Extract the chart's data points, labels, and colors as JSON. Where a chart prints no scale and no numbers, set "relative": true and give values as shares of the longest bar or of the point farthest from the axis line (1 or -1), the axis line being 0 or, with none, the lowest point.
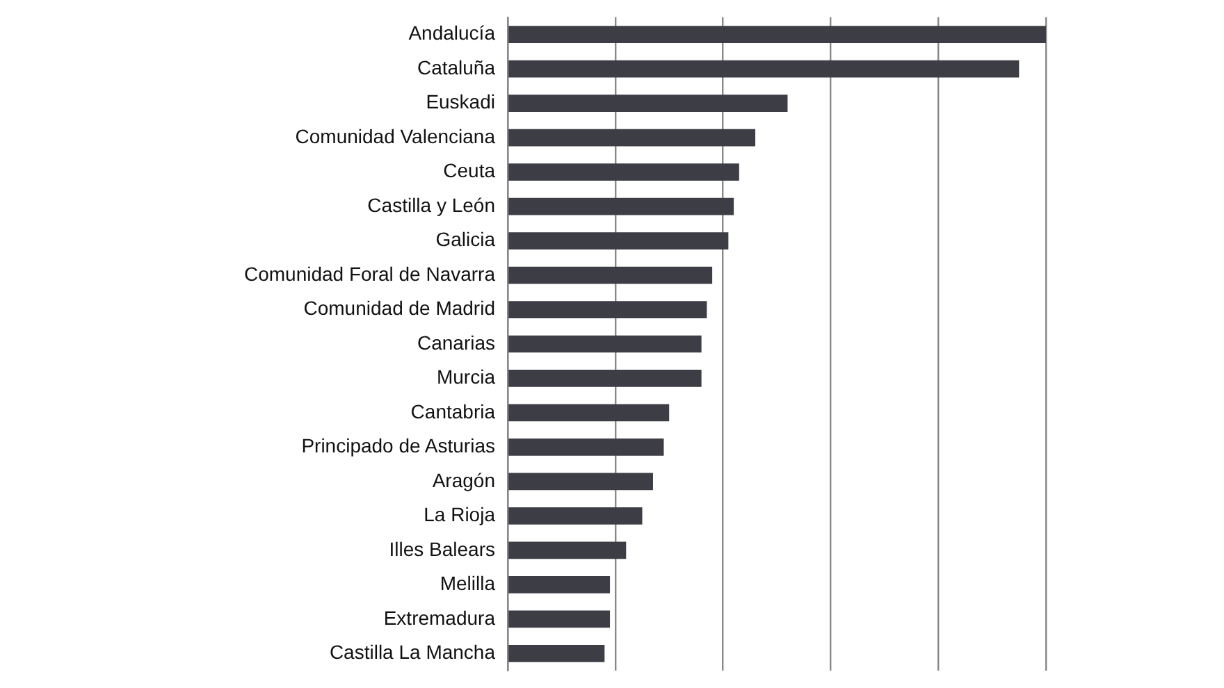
{
  "chart_data": {
    "type": "bar",
    "orientation": "horizontal",
    "relative": true,
    "grid": "x",
    "color": "#3d3d45",
    "categories": [
      "Andalucía",
      "Cataluña",
      "Euskadi",
      "Comunidad Valenciana",
      "Ceuta",
      "Castilla y León",
      "Galicia",
      "Comunidad Foral de Navarra",
      "Comunidad de Madrid",
      "Canarias",
      "Murcia",
      "Cantabria",
      "Principado de Asturias",
      "Aragón",
      "La Rioja",
      "Illes Balears",
      "Melilla",
      "Extremadura",
      "Castilla La Mancha"
    ],
    "values": [
      1,
      0.95,
      0.52,
      0.46,
      0.43,
      0.42,
      0.41,
      0.38,
      0.37,
      0.36,
      0.36,
      0.3,
      0.29,
      0.27,
      0.25,
      0.22,
      0.19,
      0.19,
      0.18
    ]
  }
}
